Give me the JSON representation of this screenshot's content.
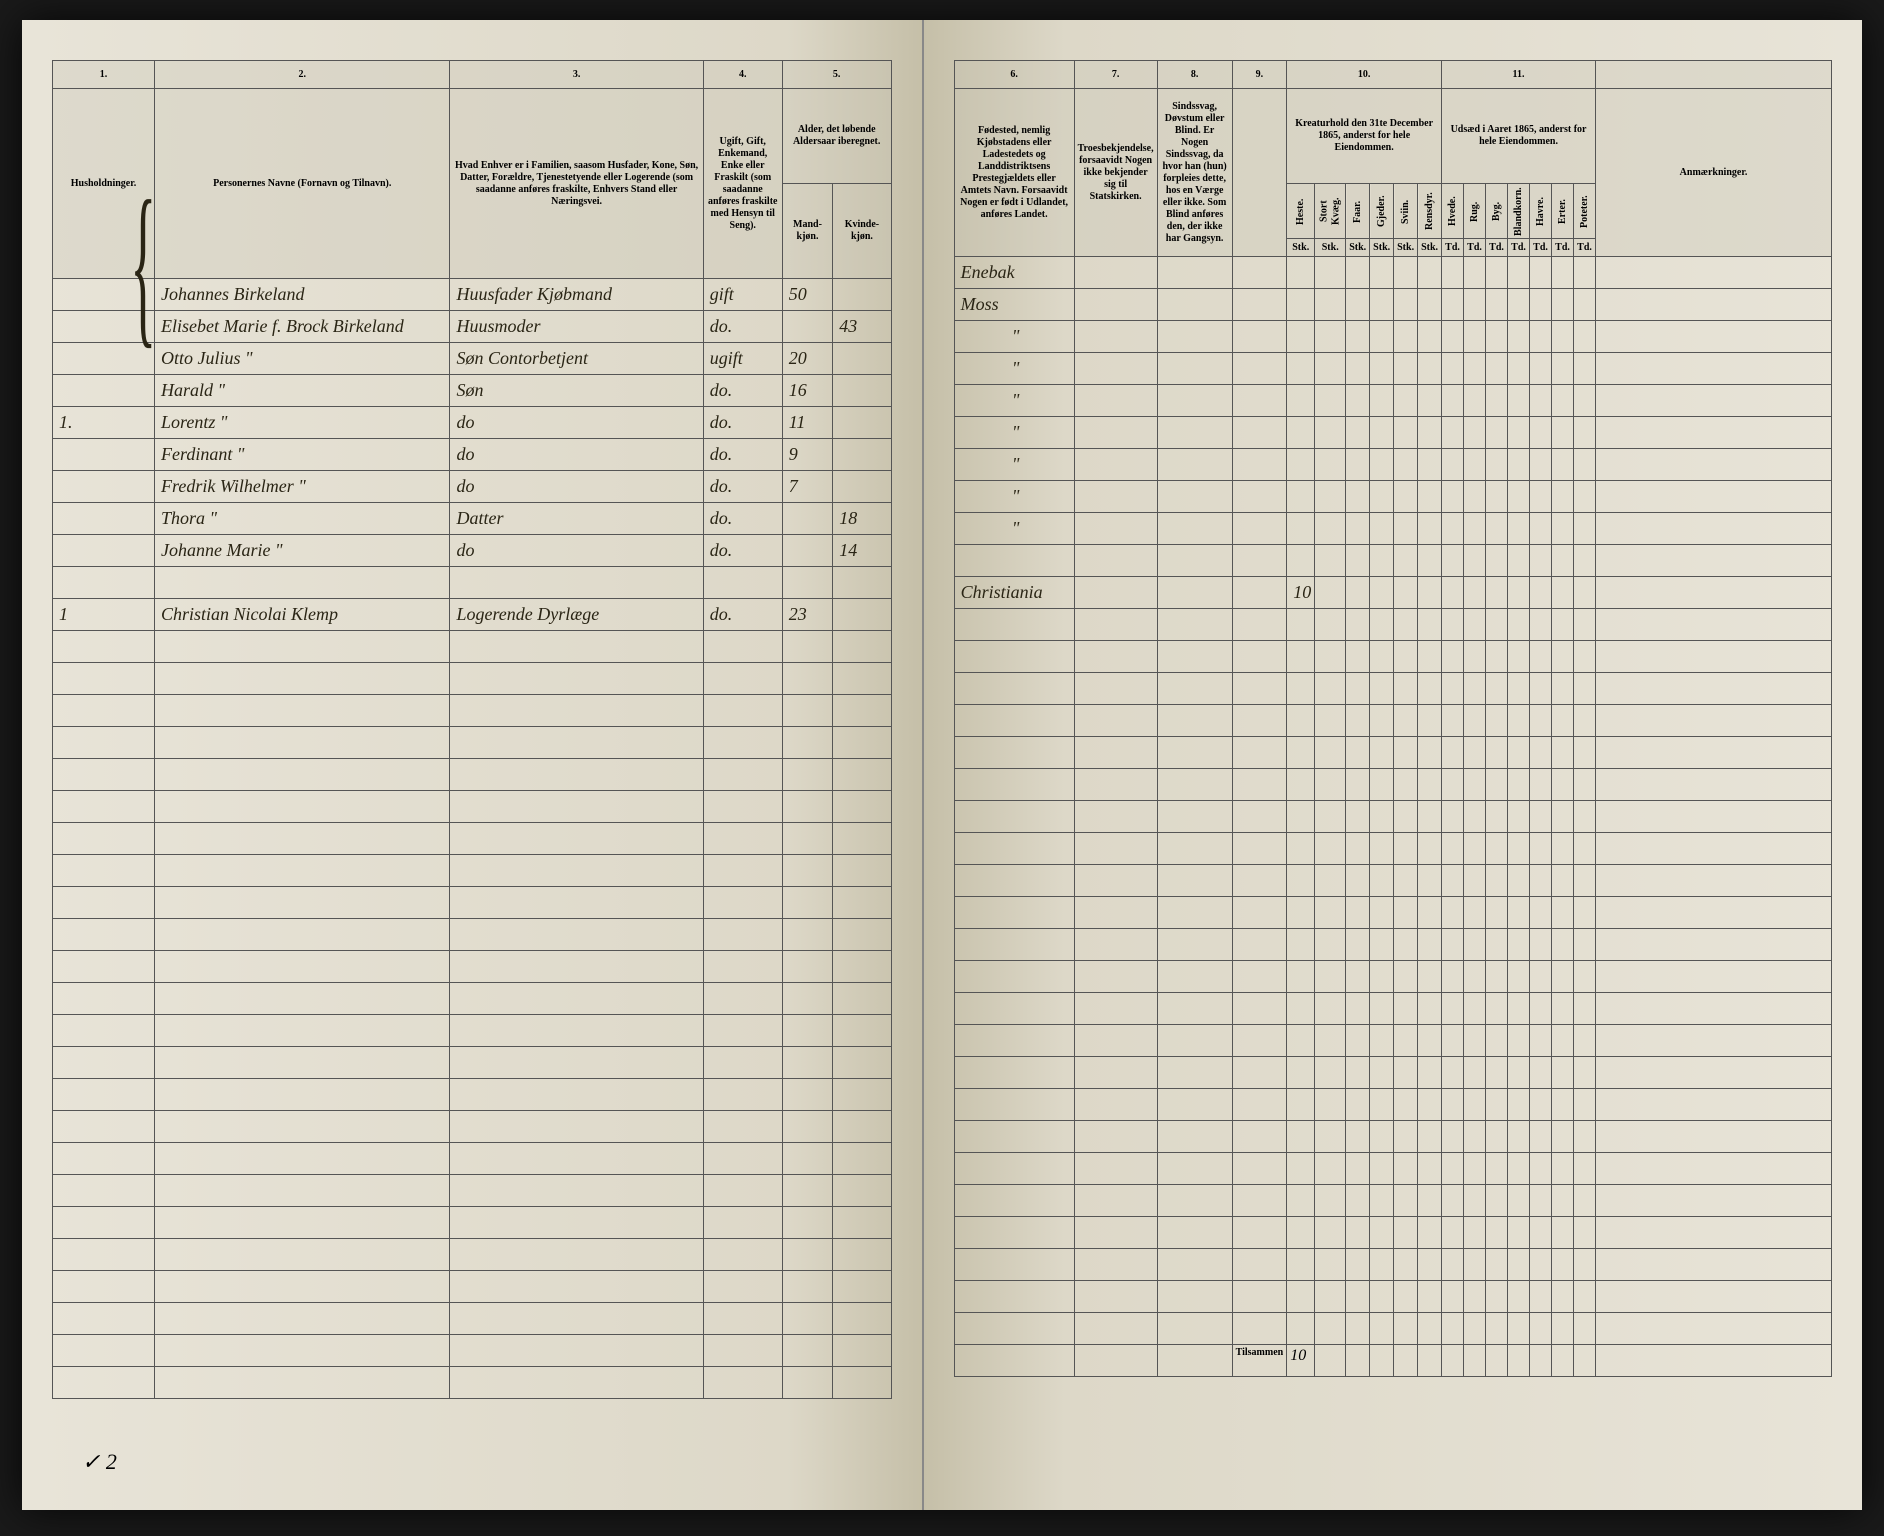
{
  "document": {
    "type": "census_ledger",
    "year": "1865",
    "background_color": "#ddd8c8",
    "border_color": "#555555",
    "ink_color": "#2a2515"
  },
  "left_page": {
    "columns": {
      "c1": {
        "num": "1.",
        "desc": "Husholdninger."
      },
      "c2": {
        "num": "2.",
        "desc": "Personernes Navne (Fornavn og Tilnavn)."
      },
      "c3": {
        "num": "3.",
        "desc": "Hvad Enhver er i Familien, saasom Husfader, Kone, Søn, Datter, Forældre, Tjenestetyende eller Logerende (som saadanne anføres fraskilte, Enhvers Stand eller Næringsvei."
      },
      "c4": {
        "num": "4.",
        "desc": "Ugift, Gift, Enkemand, Enke eller Fraskilt (som saadanne anføres fraskilte med Hensyn til Seng)."
      },
      "c5": {
        "num": "5.",
        "desc": "Alder, det løbende Aldersaar iberegnet.",
        "sub_a": "Mand-kjøn.",
        "sub_b": "Kvinde-kjøn."
      }
    },
    "rows": [
      {
        "hh": "",
        "name": "Johannes Birkeland",
        "role": "Huusfader Kjøbmand",
        "status": "gift",
        "age_m": "50",
        "age_f": ""
      },
      {
        "hh": "",
        "name": "Elisebet Marie f. Brock Birkeland",
        "role": "Huusmoder",
        "status": "do.",
        "age_m": "",
        "age_f": "43"
      },
      {
        "hh": "",
        "name": "Otto Julius    \"",
        "role": "Søn Contorbetjent",
        "status": "ugift",
        "age_m": "20",
        "age_f": ""
      },
      {
        "hh": "",
        "name": "Harald    \"",
        "role": "Søn",
        "status": "do.",
        "age_m": "16",
        "age_f": ""
      },
      {
        "hh": "1.",
        "name": "Lorentz    \"",
        "role": "do",
        "status": "do.",
        "age_m": "11",
        "age_f": ""
      },
      {
        "hh": "",
        "name": "Ferdinant    \"",
        "role": "do",
        "status": "do.",
        "age_m": "9",
        "age_f": ""
      },
      {
        "hh": "",
        "name": "Fredrik Wilhelmer    \"",
        "role": "do",
        "status": "do.",
        "age_m": "7",
        "age_f": ""
      },
      {
        "hh": "",
        "name": "Thora    \"",
        "role": "Datter",
        "status": "do.",
        "age_m": "",
        "age_f": "18"
      },
      {
        "hh": "",
        "name": "Johanne Marie    \"",
        "role": "do",
        "status": "do.",
        "age_m": "",
        "age_f": "14"
      },
      {
        "hh": "",
        "name": "",
        "role": "",
        "status": "",
        "age_m": "",
        "age_f": ""
      },
      {
        "hh": "1",
        "name": "Christian Nicolai Klemp",
        "role": "Logerende Dyrlæge",
        "status": "do.",
        "age_m": "23",
        "age_f": ""
      }
    ],
    "footer": "✓ 2"
  },
  "right_page": {
    "columns": {
      "c6": {
        "num": "6.",
        "desc": "Fødested, nemlig Kjøbstadens eller Ladestedets og Landdistriktsens Prestegjældets eller Amtets Navn. Forsaavidt Nogen er født i Udlandet, anføres Landet."
      },
      "c7": {
        "num": "7.",
        "desc": "Troesbekjendelse, forsaavidt Nogen ikke bekjender sig til Statskirken."
      },
      "c8": {
        "num": "8.",
        "desc": "Sindssvag, Døvstum eller Blind. Er Nogen Sindssvag, da hvor han (hun) forpleies dette, hos en Værge eller ikke. Som Blind anføres den, der ikke har Gangsyn."
      },
      "c9": {
        "num": "9."
      },
      "c10": {
        "num": "10.",
        "desc": "Kreaturhold den 31te December 1865, anderst for hele Eiendommen.",
        "subs": [
          "Heste.",
          "Stort Kvæg.",
          "Faar.",
          "Gjeder.",
          "Sviin.",
          "Rensdyr."
        ]
      },
      "c11": {
        "num": "11.",
        "desc": "Udsæd i Aaret 1865, anderst for hele Eiendommen.",
        "subs": [
          "Hvede.",
          "Rug.",
          "Byg.",
          "Blandkorn.",
          "Havre.",
          "Erter.",
          "Poteter."
        ]
      },
      "anm": "Anmærkninger."
    },
    "rows": [
      {
        "birthplace": "Enebak",
        "c10_0": ""
      },
      {
        "birthplace": "Moss",
        "c10_0": ""
      },
      {
        "birthplace": "\"",
        "c10_0": ""
      },
      {
        "birthplace": "\"",
        "c10_0": ""
      },
      {
        "birthplace": "\"",
        "c10_0": ""
      },
      {
        "birthplace": "\"",
        "c10_0": ""
      },
      {
        "birthplace": "\"",
        "c10_0": ""
      },
      {
        "birthplace": "\"",
        "c10_0": ""
      },
      {
        "birthplace": "\"",
        "c10_0": ""
      },
      {
        "birthplace": "",
        "c10_0": ""
      },
      {
        "birthplace": "Christiania",
        "c10_0": "10"
      }
    ],
    "footer_label": "Tilsammen",
    "footer_total": "10"
  }
}
